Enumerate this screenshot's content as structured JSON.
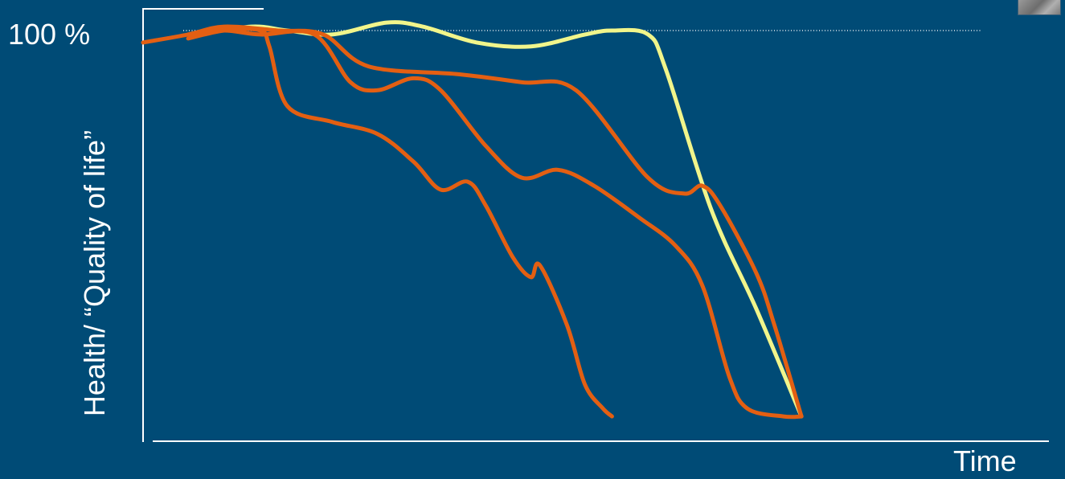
{
  "chart_data": {
    "type": "line",
    "title": "",
    "xlabel": "Time",
    "ylabel": "Health/ “Quality of life”",
    "y_tick_label": "100 %",
    "x_range": [
      0,
      100
    ],
    "y_range": [
      0,
      100
    ],
    "reference_line_y": 100,
    "grid": false,
    "legend": "none",
    "colors": {
      "background": "#004b76",
      "axis": "#ffffff",
      "highlight_series": "#f1f58b",
      "other_series": "#e35f12"
    },
    "series": [
      {
        "color": "#f1f58b",
        "points": [
          [
            6,
            99
          ],
          [
            12,
            101
          ],
          [
            16,
            100
          ],
          [
            21,
            99
          ],
          [
            27,
            102
          ],
          [
            31,
            101
          ],
          [
            37,
            97
          ],
          [
            43,
            96
          ],
          [
            49,
            99
          ],
          [
            52,
            100
          ],
          [
            56,
            99
          ],
          [
            58,
            90
          ],
          [
            63,
            55
          ],
          [
            68,
            30
          ],
          [
            73,
            3
          ]
        ]
      },
      {
        "color": "#e35f12",
        "points": [
          [
            0,
            97
          ],
          [
            5,
            99
          ],
          [
            9,
            101
          ],
          [
            15,
            100
          ],
          [
            20,
            99
          ],
          [
            25,
            91
          ],
          [
            35,
            89
          ],
          [
            42,
            87
          ],
          [
            48,
            85
          ],
          [
            56,
            63
          ],
          [
            60,
            59
          ],
          [
            62,
            61
          ],
          [
            64,
            56
          ],
          [
            68,
            39
          ],
          [
            70,
            26
          ],
          [
            73,
            3
          ]
        ]
      },
      {
        "color": "#e35f12",
        "points": [
          [
            5,
            99
          ],
          [
            9,
            100
          ],
          [
            13,
            99
          ],
          [
            19,
            99
          ],
          [
            23,
            87
          ],
          [
            26,
            85
          ],
          [
            30,
            88
          ],
          [
            33,
            85
          ],
          [
            38,
            71
          ],
          [
            42,
            63
          ],
          [
            46,
            65
          ],
          [
            50,
            61
          ],
          [
            55,
            53
          ],
          [
            59,
            46
          ],
          [
            62,
            36
          ],
          [
            65,
            13
          ],
          [
            67,
            5
          ],
          [
            71,
            3
          ],
          [
            73,
            3
          ]
        ]
      },
      {
        "color": "#e35f12",
        "points": [
          [
            5,
            98
          ],
          [
            9,
            100
          ],
          [
            13,
            100
          ],
          [
            14,
            96
          ],
          [
            16,
            81
          ],
          [
            21,
            77
          ],
          [
            26,
            74
          ],
          [
            30,
            67
          ],
          [
            33,
            60
          ],
          [
            36,
            62
          ],
          [
            38,
            56
          ],
          [
            41,
            43
          ],
          [
            43,
            38
          ],
          [
            44,
            41
          ],
          [
            47,
            26
          ],
          [
            49,
            11
          ],
          [
            51,
            5
          ],
          [
            52,
            3
          ]
        ]
      }
    ]
  }
}
